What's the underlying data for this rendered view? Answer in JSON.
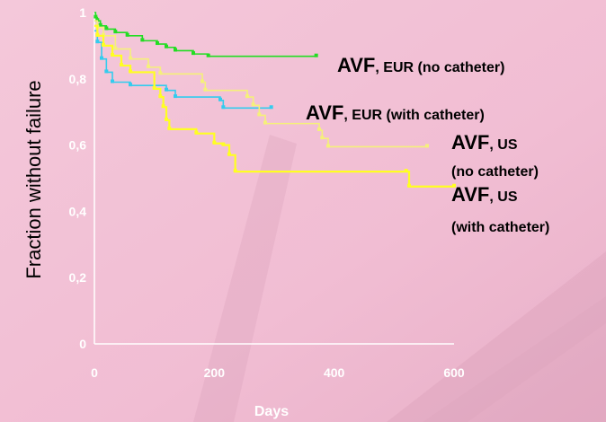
{
  "chart_data": {
    "type": "line",
    "title": "",
    "xlabel": "Days",
    "ylabel": "Fraction without failure",
    "xlim": [
      0,
      600
    ],
    "ylim": [
      0,
      1
    ],
    "x_ticks": [
      "0",
      "200",
      "400",
      "600"
    ],
    "y_ticks": [
      "0",
      "0,2",
      "0,4",
      "0,6",
      "0,8",
      "1"
    ],
    "grid": false,
    "series": [
      {
        "color": "#22dd22",
        "points": [
          [
            0,
            1
          ],
          [
            2,
            0.985
          ],
          [
            5,
            0.975
          ],
          [
            10,
            0.96
          ],
          [
            20,
            0.95
          ],
          [
            35,
            0.94
          ],
          [
            55,
            0.93
          ],
          [
            80,
            0.915
          ],
          [
            105,
            0.905
          ],
          [
            120,
            0.895
          ],
          [
            135,
            0.885
          ],
          [
            165,
            0.875
          ],
          [
            190,
            0.868
          ],
          [
            370,
            0.868
          ]
        ]
      },
      {
        "color": "#33ccee",
        "points": [
          [
            0,
            0.945
          ],
          [
            5,
            0.91
          ],
          [
            12,
            0.86
          ],
          [
            20,
            0.82
          ],
          [
            30,
            0.79
          ],
          [
            60,
            0.78
          ],
          [
            120,
            0.765
          ],
          [
            135,
            0.745
          ],
          [
            210,
            0.735
          ],
          [
            215,
            0.712
          ],
          [
            295,
            0.712
          ]
        ]
      },
      {
        "color": "#f5f07a",
        "points": [
          [
            0,
            0.975
          ],
          [
            5,
            0.955
          ],
          [
            15,
            0.93
          ],
          [
            35,
            0.89
          ],
          [
            60,
            0.86
          ],
          [
            90,
            0.835
          ],
          [
            110,
            0.815
          ],
          [
            180,
            0.79
          ],
          [
            185,
            0.765
          ],
          [
            255,
            0.745
          ],
          [
            265,
            0.72
          ],
          [
            275,
            0.69
          ],
          [
            285,
            0.665
          ],
          [
            375,
            0.645
          ],
          [
            380,
            0.62
          ],
          [
            390,
            0.595
          ],
          [
            555,
            0.595
          ]
        ]
      },
      {
        "color": "#ffff22",
        "points": [
          [
            0,
            0.96
          ],
          [
            5,
            0.93
          ],
          [
            15,
            0.9
          ],
          [
            30,
            0.87
          ],
          [
            45,
            0.84
          ],
          [
            60,
            0.82
          ],
          [
            100,
            0.77
          ],
          [
            110,
            0.745
          ],
          [
            115,
            0.715
          ],
          [
            120,
            0.675
          ],
          [
            125,
            0.648
          ],
          [
            170,
            0.635
          ],
          [
            200,
            0.605
          ],
          [
            215,
            0.6
          ],
          [
            225,
            0.57
          ],
          [
            235,
            0.52
          ],
          [
            520,
            0.52
          ],
          [
            525,
            0.475
          ],
          [
            600,
            0.475
          ]
        ]
      }
    ],
    "annotations": [
      {
        "big": "AVF",
        "small": ", EUR (no catheter)"
      },
      {
        "big": "AVF",
        "small": ", EUR (with catheter)"
      },
      {
        "big": "AVF",
        "small": ", US",
        "line2": "(no catheter)"
      },
      {
        "big": "AVF",
        "small": ", US",
        "line2": "(with catheter)"
      }
    ]
  }
}
